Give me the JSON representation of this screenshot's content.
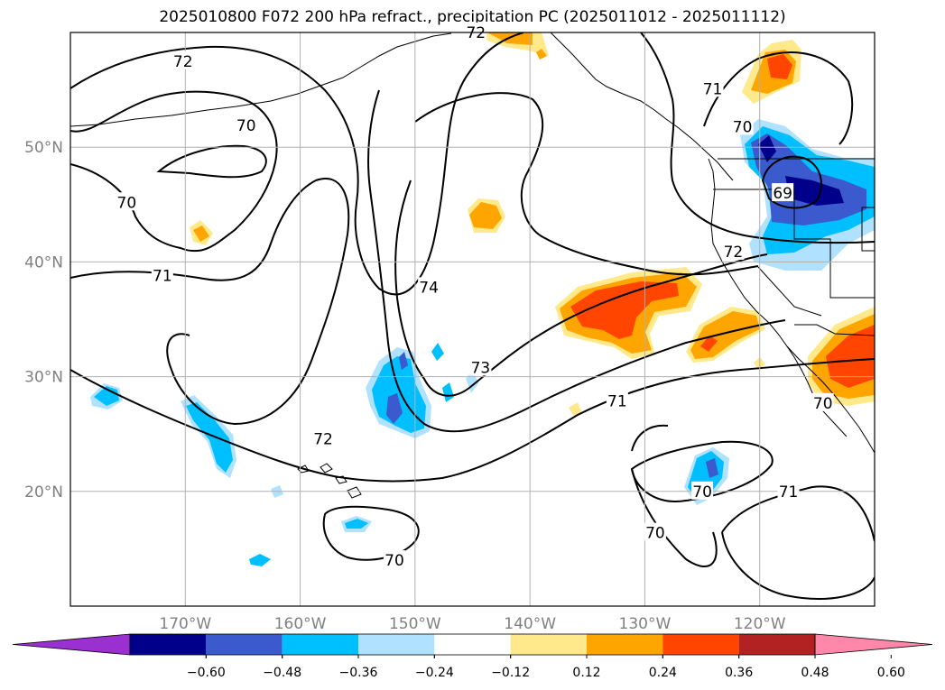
{
  "title": "2025010800 F072 200 hPa refract., precipitation PC (2025011012 - 2025011112)",
  "map": {
    "lon_range": [
      -180,
      -110
    ],
    "lat_range": [
      10,
      60
    ],
    "lat_ticks": [
      {
        "value": 50,
        "label": "50°N"
      },
      {
        "value": 40,
        "label": "40°N"
      },
      {
        "value": 30,
        "label": "30°N"
      },
      {
        "value": 20,
        "label": "20°N"
      }
    ],
    "lon_ticks": [
      {
        "value": -170,
        "label": "170°W"
      },
      {
        "value": -160,
        "label": "160°W"
      },
      {
        "value": -150,
        "label": "150°W"
      },
      {
        "value": -140,
        "label": "140°W"
      },
      {
        "value": -130,
        "label": "130°W"
      },
      {
        "value": -120,
        "label": "120°W"
      }
    ],
    "grid": true,
    "contour_labels": [
      {
        "text": "72",
        "lon": -170.2,
        "lat": 57.5
      },
      {
        "text": "72",
        "lon": -144.7,
        "lat": 60.0
      },
      {
        "text": "70",
        "lon": -164.7,
        "lat": 51.9
      },
      {
        "text": "70",
        "lon": -175.1,
        "lat": 45.2
      },
      {
        "text": "71",
        "lon": -172.0,
        "lat": 38.8
      },
      {
        "text": "74",
        "lon": -148.8,
        "lat": 37.8
      },
      {
        "text": "73",
        "lon": -144.3,
        "lat": 30.8
      },
      {
        "text": "72",
        "lon": -158.0,
        "lat": 24.6
      },
      {
        "text": "70",
        "lon": -151.8,
        "lat": 14.0
      },
      {
        "text": "71",
        "lon": -132.4,
        "lat": 27.9
      },
      {
        "text": "71",
        "lon": -124.1,
        "lat": 55.1
      },
      {
        "text": "70",
        "lon": -121.5,
        "lat": 51.8
      },
      {
        "text": "69",
        "lon": -118.0,
        "lat": 46.0
      },
      {
        "text": "72",
        "lon": -122.3,
        "lat": 40.9
      },
      {
        "text": "70",
        "lon": -125.0,
        "lat": 20.0
      },
      {
        "text": "70",
        "lon": -129.1,
        "lat": 16.4
      },
      {
        "text": "71",
        "lon": -117.5,
        "lat": 20.0
      },
      {
        "text": "70",
        "lon": -114.5,
        "lat": 27.7
      }
    ]
  },
  "colorbar": {
    "levels": [
      -0.6,
      -0.48,
      -0.36,
      -0.24,
      -0.12,
      0.12,
      0.24,
      0.36,
      0.48,
      0.6
    ],
    "tick_labels": [
      "−0.60",
      "−0.48",
      "−0.36",
      "−0.24",
      "−0.12",
      "0.12",
      "0.24",
      "0.36",
      "0.48",
      "0.60"
    ],
    "colors": [
      "#9b30d0",
      "#00008b",
      "#3a5acd",
      "#00bfff",
      "#b0e2ff",
      "#ffffff",
      "#ffe98a",
      "#ffa500",
      "#ff4500",
      "#b22222",
      "#ff88aa"
    ],
    "extend": "both"
  }
}
